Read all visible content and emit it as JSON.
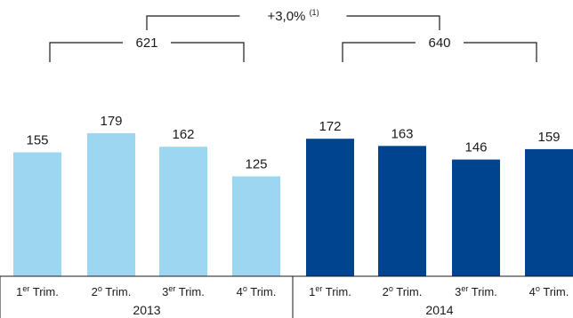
{
  "chart_data": {
    "type": "bar",
    "title": "",
    "xlabel": "",
    "ylabel": "",
    "ylim": [
      0,
      200
    ],
    "groups": [
      {
        "year": "2013",
        "total": "621",
        "color": "#9dd6f0",
        "categories": [
          {
            "sup": "1",
            "sup_text": "er",
            "rest": " Trim."
          },
          {
            "sup": "2",
            "sup_text": "o",
            "rest": " Trim."
          },
          {
            "sup": "3",
            "sup_text": "er",
            "rest": " Trim."
          },
          {
            "sup": "4",
            "sup_text": "o",
            "rest": " Trim."
          }
        ],
        "values": [
          155,
          179,
          162,
          125
        ]
      },
      {
        "year": "2014",
        "total": "640",
        "color": "#00448f",
        "categories": [
          {
            "sup": "1",
            "sup_text": "er",
            "rest": " Trim."
          },
          {
            "sup": "2",
            "sup_text": "o",
            "rest": " Trim."
          },
          {
            "sup": "3",
            "sup_text": "er",
            "rest": " Trim."
          },
          {
            "sup": "4",
            "sup_text": "o",
            "rest": " Trim."
          }
        ],
        "values": [
          172,
          163,
          146,
          159
        ]
      }
    ],
    "change": {
      "label": "+3,0%",
      "note": "(1)"
    },
    "colors": {
      "text": "#1a1a1a",
      "bracket": "#1a1a1a",
      "baseline": "#1a1a1a",
      "highlight_bg": "#00448f"
    }
  }
}
